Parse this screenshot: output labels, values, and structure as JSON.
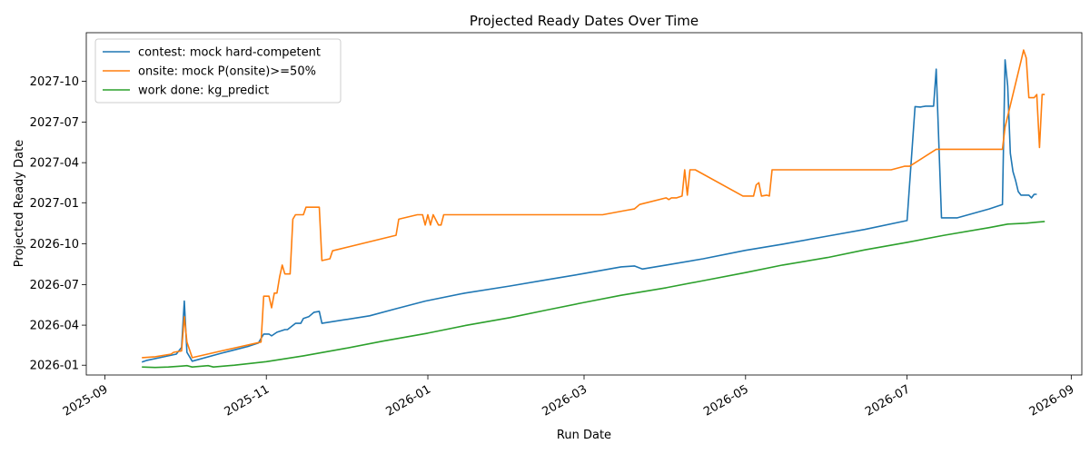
{
  "chart_data": {
    "type": "line",
    "title": "Projected Ready Dates Over Time",
    "xlabel": "Run Date",
    "ylabel": "Projected Ready Date",
    "xlim": [
      "2025-08-25",
      "2026-09-05"
    ],
    "ylim": [
      "2025-12-10",
      "2028-01-18"
    ],
    "x_ticks": [
      "2025-09",
      "2025-11",
      "2026-01",
      "2026-03",
      "2026-05",
      "2026-07",
      "2026-09"
    ],
    "y_ticks": [
      "2026-01",
      "2026-04",
      "2026-07",
      "2026-10",
      "2027-01",
      "2027-04",
      "2027-07",
      "2027-10"
    ],
    "grid": false,
    "legend_position": "top-left",
    "series": [
      {
        "name": "contest: mock hard-competent",
        "color": "#1f77b4",
        "points": [
          [
            "2025-09-15",
            "2026-01-08"
          ],
          [
            "2025-09-17",
            "2026-01-12"
          ],
          [
            "2025-09-25",
            "2026-01-22"
          ],
          [
            "2025-09-28",
            "2026-01-26"
          ],
          [
            "2025-09-30",
            "2026-02-10"
          ],
          [
            "2025-10-01",
            "2026-05-25"
          ],
          [
            "2025-10-02",
            "2026-01-30"
          ],
          [
            "2025-10-04",
            "2026-01-10"
          ],
          [
            "2025-10-15",
            "2026-01-28"
          ],
          [
            "2025-10-25",
            "2026-02-12"
          ],
          [
            "2025-10-29",
            "2026-02-20"
          ],
          [
            "2025-10-31",
            "2026-03-12"
          ],
          [
            "2025-11-02",
            "2026-03-12"
          ],
          [
            "2025-11-03",
            "2026-03-08"
          ],
          [
            "2025-11-05",
            "2026-03-16"
          ],
          [
            "2025-11-08",
            "2026-03-22"
          ],
          [
            "2025-11-09",
            "2026-03-22"
          ],
          [
            "2025-11-12",
            "2026-04-05"
          ],
          [
            "2025-11-14",
            "2026-04-05"
          ],
          [
            "2025-11-15",
            "2026-04-16"
          ],
          [
            "2025-11-17",
            "2026-04-20"
          ],
          [
            "2025-11-19",
            "2026-04-30"
          ],
          [
            "2025-11-21",
            "2026-05-02"
          ],
          [
            "2025-11-22",
            "2026-04-05"
          ],
          [
            "2025-12-10",
            "2026-04-22"
          ],
          [
            "2025-12-20",
            "2026-05-08"
          ],
          [
            "2025-12-31",
            "2026-05-25"
          ],
          [
            "2026-01-15",
            "2026-06-12"
          ],
          [
            "2026-02-01",
            "2026-06-28"
          ],
          [
            "2026-02-15",
            "2026-07-12"
          ],
          [
            "2026-03-01",
            "2026-07-26"
          ],
          [
            "2026-03-15",
            "2026-08-10"
          ],
          [
            "2026-03-20",
            "2026-08-12"
          ],
          [
            "2026-03-23",
            "2026-08-05"
          ],
          [
            "2026-04-01",
            "2026-08-14"
          ],
          [
            "2026-04-15",
            "2026-08-28"
          ],
          [
            "2026-05-01",
            "2026-09-16"
          ],
          [
            "2026-05-15",
            "2026-09-30"
          ],
          [
            "2026-06-01",
            "2026-10-18"
          ],
          [
            "2026-06-15",
            "2026-11-02"
          ],
          [
            "2026-07-01",
            "2026-11-22"
          ],
          [
            "2026-07-04",
            "2027-08-05"
          ],
          [
            "2026-07-06",
            "2027-08-04"
          ],
          [
            "2026-07-08",
            "2027-08-06"
          ],
          [
            "2026-07-11",
            "2027-08-06"
          ],
          [
            "2026-07-12",
            "2027-10-28"
          ],
          [
            "2026-07-14",
            "2026-11-28"
          ],
          [
            "2026-07-20",
            "2026-11-28"
          ],
          [
            "2026-08-01",
            "2026-12-18"
          ],
          [
            "2026-08-06",
            "2026-12-28"
          ],
          [
            "2026-08-07",
            "2027-11-18"
          ],
          [
            "2026-08-08",
            "2027-09-20"
          ],
          [
            "2026-08-09",
            "2027-04-22"
          ],
          [
            "2026-08-10",
            "2027-03-12"
          ],
          [
            "2026-08-11",
            "2027-02-20"
          ],
          [
            "2026-08-12",
            "2027-01-26"
          ],
          [
            "2026-08-13",
            "2027-01-18"
          ],
          [
            "2026-08-16",
            "2027-01-18"
          ],
          [
            "2026-08-17",
            "2027-01-12"
          ],
          [
            "2026-08-18",
            "2027-01-20"
          ],
          [
            "2026-08-19",
            "2027-01-20"
          ]
        ]
      },
      {
        "name": "onsite: mock P(onsite)>=50%",
        "color": "#ff7f0e",
        "points": [
          [
            "2025-09-15",
            "2026-01-18"
          ],
          [
            "2025-09-20",
            "2026-01-20"
          ],
          [
            "2025-09-26",
            "2026-01-26"
          ],
          [
            "2025-09-27",
            "2026-01-30"
          ],
          [
            "2025-09-30",
            "2026-02-02"
          ],
          [
            "2025-10-01",
            "2026-04-20"
          ],
          [
            "2025-10-02",
            "2026-02-22"
          ],
          [
            "2025-10-04",
            "2026-01-18"
          ],
          [
            "2025-10-15",
            "2026-02-02"
          ],
          [
            "2025-10-30",
            "2026-02-22"
          ],
          [
            "2025-10-31",
            "2026-06-05"
          ],
          [
            "2025-11-02",
            "2026-06-05"
          ],
          [
            "2025-11-03",
            "2026-05-10"
          ],
          [
            "2025-11-04",
            "2026-06-12"
          ],
          [
            "2025-11-05",
            "2026-06-12"
          ],
          [
            "2025-11-06",
            "2026-07-18"
          ],
          [
            "2025-11-07",
            "2026-08-14"
          ],
          [
            "2025-11-08",
            "2026-07-25"
          ],
          [
            "2025-11-10",
            "2026-07-25"
          ],
          [
            "2025-11-11",
            "2026-11-25"
          ],
          [
            "2025-11-12",
            "2026-12-05"
          ],
          [
            "2025-11-15",
            "2026-12-05"
          ],
          [
            "2025-11-16",
            "2026-12-22"
          ],
          [
            "2025-11-21",
            "2026-12-22"
          ],
          [
            "2025-11-22",
            "2026-08-24"
          ],
          [
            "2025-11-25",
            "2026-08-28"
          ],
          [
            "2025-11-26",
            "2026-09-15"
          ],
          [
            "2025-12-20",
            "2026-10-20"
          ],
          [
            "2025-12-21",
            "2026-11-25"
          ],
          [
            "2025-12-28",
            "2026-12-05"
          ],
          [
            "2025-12-30",
            "2026-12-05"
          ],
          [
            "2025-12-31",
            "2026-11-12"
          ],
          [
            "2026-01-01",
            "2026-12-05"
          ],
          [
            "2026-01-02",
            "2026-11-12"
          ],
          [
            "2026-01-03",
            "2026-12-05"
          ],
          [
            "2026-01-05",
            "2026-11-12"
          ],
          [
            "2026-01-06",
            "2026-11-12"
          ],
          [
            "2026-01-07",
            "2026-12-05"
          ],
          [
            "2026-03-08",
            "2026-12-05"
          ],
          [
            "2026-03-17",
            "2026-12-15"
          ],
          [
            "2026-03-20",
            "2026-12-18"
          ],
          [
            "2026-03-22",
            "2026-12-28"
          ],
          [
            "2026-04-01",
            "2027-01-12"
          ],
          [
            "2026-04-02",
            "2027-01-08"
          ],
          [
            "2026-04-03",
            "2027-01-12"
          ],
          [
            "2026-04-05",
            "2027-01-12"
          ],
          [
            "2026-04-07",
            "2027-01-16"
          ],
          [
            "2026-04-08",
            "2027-03-16"
          ],
          [
            "2026-04-09",
            "2027-01-18"
          ],
          [
            "2026-04-10",
            "2027-03-16"
          ],
          [
            "2026-04-12",
            "2027-03-16"
          ],
          [
            "2026-04-30",
            "2027-01-16"
          ],
          [
            "2026-05-04",
            "2027-01-16"
          ],
          [
            "2026-05-05",
            "2027-02-10"
          ],
          [
            "2026-05-06",
            "2027-02-15"
          ],
          [
            "2026-05-07",
            "2027-01-16"
          ],
          [
            "2026-05-09",
            "2027-01-18"
          ],
          [
            "2026-05-10",
            "2027-01-16"
          ],
          [
            "2026-05-11",
            "2027-03-16"
          ],
          [
            "2026-06-25",
            "2027-03-16"
          ],
          [
            "2026-06-30",
            "2027-03-24"
          ],
          [
            "2026-07-02",
            "2027-03-24"
          ],
          [
            "2026-07-12",
            "2027-05-01"
          ],
          [
            "2026-08-06",
            "2027-05-01"
          ],
          [
            "2026-08-07",
            "2027-06-20"
          ],
          [
            "2026-08-13",
            "2027-11-15"
          ],
          [
            "2026-08-14",
            "2027-12-10"
          ],
          [
            "2026-08-15",
            "2027-11-22"
          ],
          [
            "2026-08-16",
            "2027-08-25"
          ],
          [
            "2026-08-18",
            "2027-08-25"
          ],
          [
            "2026-08-19",
            "2027-09-01"
          ],
          [
            "2026-08-20",
            "2027-05-05"
          ],
          [
            "2026-08-21",
            "2027-09-01"
          ],
          [
            "2026-08-22",
            "2027-09-01"
          ]
        ]
      },
      {
        "name": "work done: kg_predict",
        "color": "#2ca02c",
        "points": [
          [
            "2025-09-15",
            "2025-12-28"
          ],
          [
            "2025-09-20",
            "2025-12-27"
          ],
          [
            "2025-09-25",
            "2025-12-28"
          ],
          [
            "2025-09-30",
            "2025-12-30"
          ],
          [
            "2025-10-02",
            "2025-12-31"
          ],
          [
            "2025-10-04",
            "2025-12-28"
          ],
          [
            "2025-10-10",
            "2025-12-31"
          ],
          [
            "2025-10-12",
            "2025-12-28"
          ],
          [
            "2025-10-20",
            "2026-01-01"
          ],
          [
            "2025-11-01",
            "2026-01-09"
          ],
          [
            "2025-11-15",
            "2026-01-22"
          ],
          [
            "2025-12-01",
            "2026-02-08"
          ],
          [
            "2025-12-15",
            "2026-02-24"
          ],
          [
            "2026-01-01",
            "2026-03-14"
          ],
          [
            "2026-01-15",
            "2026-03-31"
          ],
          [
            "2026-02-01",
            "2026-04-18"
          ],
          [
            "2026-02-15",
            "2026-05-05"
          ],
          [
            "2026-03-01",
            "2026-05-22"
          ],
          [
            "2026-03-15",
            "2026-06-07"
          ],
          [
            "2026-04-01",
            "2026-06-24"
          ],
          [
            "2026-04-15",
            "2026-07-10"
          ],
          [
            "2026-05-01",
            "2026-07-28"
          ],
          [
            "2026-05-15",
            "2026-08-14"
          ],
          [
            "2026-06-01",
            "2026-08-31"
          ],
          [
            "2026-06-15",
            "2026-09-17"
          ],
          [
            "2026-07-01",
            "2026-10-04"
          ],
          [
            "2026-07-15",
            "2026-10-20"
          ],
          [
            "2026-08-01",
            "2026-11-06"
          ],
          [
            "2026-08-08",
            "2026-11-14"
          ],
          [
            "2026-08-15",
            "2026-11-16"
          ],
          [
            "2026-08-22",
            "2026-11-20"
          ]
        ]
      }
    ]
  }
}
